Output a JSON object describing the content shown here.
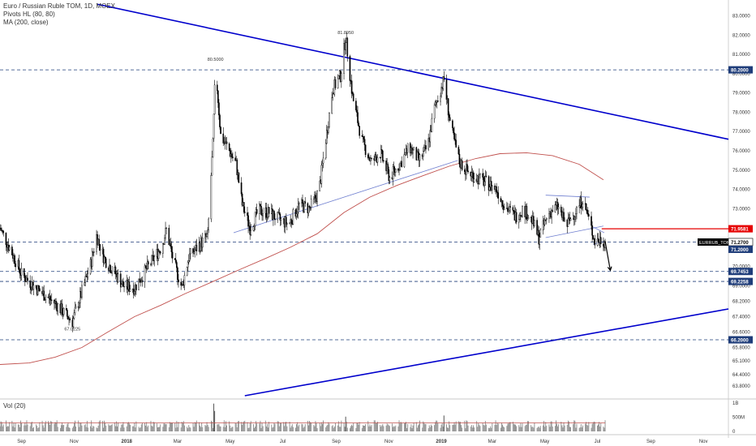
{
  "legend": {
    "title": "Euro / Russian Ruble TOM, 1D, MOEX",
    "indicator1": "Pivots HL (80, 80)",
    "indicator2": "MA (200, close)"
  },
  "volume_label": "Vol (20)",
  "colors": {
    "candle": "#000000",
    "ma": "#c0504d",
    "trendline": "#0000cc",
    "thin_trendline": "#6f7fd0",
    "hline": "#1f3d7a",
    "red_level": "#e60000",
    "volume": "#8a8a8a",
    "volume_ma": "#c0504d"
  },
  "chart_data": {
    "type": "candlestick",
    "title": "Euro / Russian Ruble TOM, 1D, MOEX",
    "xlabel": "",
    "ylabel": "",
    "x_ticks": [
      "Sep",
      "Nov",
      "2018",
      "Mar",
      "May",
      "Jul",
      "Sep",
      "Nov",
      "2019",
      "Mar",
      "May",
      "Jul",
      "Sep",
      "Nov"
    ],
    "y_ticks": [
      "83.0000",
      "82.0000",
      "81.0000",
      "80.0000",
      "79.0000",
      "78.0000",
      "77.0000",
      "76.0000",
      "75.0000",
      "74.0000",
      "73.0000",
      "72.0000",
      "71.0000",
      "70.0000",
      "69.0000",
      "68.2000",
      "67.4000",
      "66.6000",
      "65.8000",
      "65.1000",
      "64.4000",
      "63.8000"
    ],
    "ylim": [
      63.3,
      83.4
    ],
    "x_range": [
      "2017-08-07",
      "2019-11-30"
    ],
    "series_price": [
      [
        "2017-08-07",
        72.0
      ],
      [
        "2017-08-20",
        70.8
      ],
      [
        "2017-09-01",
        69.6
      ],
      [
        "2017-09-15",
        69.0
      ],
      [
        "2017-09-28",
        68.5
      ],
      [
        "2017-10-10",
        68.1
      ],
      [
        "2017-10-20",
        67.6
      ],
      [
        "2017-10-30",
        67.15
      ],
      [
        "2017-11-10",
        68.7
      ],
      [
        "2017-11-20",
        70.1
      ],
      [
        "2017-11-27",
        71.6
      ],
      [
        "2017-12-06",
        70.4
      ],
      [
        "2017-12-18",
        69.7
      ],
      [
        "2017-12-28",
        69.0
      ],
      [
        "2018-01-10",
        68.9
      ],
      [
        "2018-01-20",
        69.6
      ],
      [
        "2018-02-01",
        70.4
      ],
      [
        "2018-02-10",
        71.0
      ],
      [
        "2018-02-16",
        71.9
      ],
      [
        "2018-02-24",
        70.3
      ],
      [
        "2018-03-06",
        68.9
      ],
      [
        "2018-03-14",
        70.5
      ],
      [
        "2018-03-26",
        71.1
      ],
      [
        "2018-04-05",
        71.6
      ],
      [
        "2018-04-11",
        76.3
      ],
      [
        "2018-04-14",
        80.5
      ],
      [
        "2018-04-20",
        76.8
      ],
      [
        "2018-04-30",
        76.0
      ],
      [
        "2018-05-08",
        75.3
      ],
      [
        "2018-05-15",
        73.2
      ],
      [
        "2018-05-24",
        72.0
      ],
      [
        "2018-06-03",
        72.9
      ],
      [
        "2018-06-15",
        72.8
      ],
      [
        "2018-06-28",
        72.4
      ],
      [
        "2018-07-08",
        72.2
      ],
      [
        "2018-07-20",
        73.2
      ],
      [
        "2018-08-01",
        73.0
      ],
      [
        "2018-08-12",
        73.9
      ],
      [
        "2018-08-20",
        76.6
      ],
      [
        "2018-08-28",
        79.2
      ],
      [
        "2018-09-06",
        79.9
      ],
      [
        "2018-09-12",
        81.9
      ],
      [
        "2018-09-20",
        78.8
      ],
      [
        "2018-10-01",
        76.5
      ],
      [
        "2018-10-12",
        75.4
      ],
      [
        "2018-10-22",
        75.9
      ],
      [
        "2018-11-02",
        74.6
      ],
      [
        "2018-11-15",
        75.4
      ],
      [
        "2018-11-25",
        76.2
      ],
      [
        "2018-12-06",
        75.5
      ],
      [
        "2018-12-16",
        76.2
      ],
      [
        "2018-12-24",
        78.2
      ],
      [
        "2019-01-04",
        79.7
      ],
      [
        "2019-01-12",
        77.2
      ],
      [
        "2019-01-22",
        75.4
      ],
      [
        "2019-02-01",
        74.9
      ],
      [
        "2019-02-12",
        74.6
      ],
      [
        "2019-02-24",
        74.3
      ],
      [
        "2019-03-06",
        74.0
      ],
      [
        "2019-03-16",
        73.1
      ],
      [
        "2019-03-28",
        72.6
      ],
      [
        "2019-04-06",
        73.0
      ],
      [
        "2019-04-16",
        72.4
      ],
      [
        "2019-04-24",
        71.5
      ],
      [
        "2019-05-06",
        72.8
      ],
      [
        "2019-05-16",
        73.1
      ],
      [
        "2019-05-26",
        72.1
      ],
      [
        "2019-06-06",
        72.9
      ],
      [
        "2019-06-14",
        73.5
      ],
      [
        "2019-06-22",
        72.3
      ],
      [
        "2019-06-28",
        71.3
      ],
      [
        "2019-07-04",
        71.4
      ],
      [
        "2019-07-10",
        71.3
      ]
    ],
    "ma_200": [
      [
        "2017-08-07",
        64.92
      ],
      [
        "2017-09-10",
        65.0
      ],
      [
        "2017-10-10",
        65.3
      ],
      [
        "2017-11-10",
        65.8
      ],
      [
        "2017-12-10",
        66.6
      ],
      [
        "2018-01-10",
        67.4
      ],
      [
        "2018-02-10",
        68.0
      ],
      [
        "2018-03-10",
        68.6
      ],
      [
        "2018-04-10",
        69.2
      ],
      [
        "2018-05-10",
        69.8
      ],
      [
        "2018-06-10",
        70.4
      ],
      [
        "2018-07-10",
        71.0
      ],
      [
        "2018-08-10",
        71.7
      ],
      [
        "2018-09-10",
        72.8
      ],
      [
        "2018-10-10",
        73.6
      ],
      [
        "2018-11-10",
        74.2
      ],
      [
        "2018-12-10",
        74.7
      ],
      [
        "2019-01-10",
        75.2
      ],
      [
        "2019-02-10",
        75.6
      ],
      [
        "2019-03-10",
        75.85
      ],
      [
        "2019-04-10",
        75.9
      ],
      [
        "2019-05-10",
        75.75
      ],
      [
        "2019-06-10",
        75.3
      ],
      [
        "2019-07-08",
        74.5
      ]
    ],
    "pivot_labels": [
      {
        "date": "2017-10-30",
        "price": 67.0225,
        "text": "67.0225",
        "position": "below"
      },
      {
        "date": "2018-04-14",
        "price": 80.5,
        "text": "80.5000",
        "position": "above"
      },
      {
        "date": "2018-09-12",
        "price": 81.895,
        "text": "81.8950",
        "position": "above"
      }
    ],
    "horizontal_levels": [
      {
        "price": 80.2,
        "label": "80.2000",
        "style": "dashed",
        "color": "#1f3d7a"
      },
      {
        "price": 71.27,
        "label": "71.2700",
        "style": "dashed",
        "color": "#1f3d7a"
      },
      {
        "price": 69.7453,
        "label": "69.7453",
        "style": "dashed",
        "color": "#1f3d7a"
      },
      {
        "price": 69.2258,
        "label": "69.2258",
        "style": "dashed",
        "color": "#1f3d7a"
      },
      {
        "price": 66.2,
        "label": "66.2000",
        "style": "dashed",
        "color": "#1f3d7a"
      }
    ],
    "red_level": {
      "price": 71.9581,
      "label": "71.9581",
      "start_date": "2019-07-06"
    },
    "price_tags": [
      {
        "price": 71.27,
        "text": "EURRUB_TOM",
        "value": "71.2700"
      },
      {
        "price": 71.2,
        "value": "71.2000"
      }
    ],
    "trendlines": [
      {
        "from": [
          "2017-11-28",
          83.6
        ],
        "to": [
          "2019-11-30",
          76.6
        ],
        "color": "#0000cc",
        "width": 1.6
      },
      {
        "from": [
          "2018-05-18",
          63.3
        ],
        "to": [
          "2019-11-30",
          67.8
        ],
        "color": "#0000cc",
        "width": 1.6
      },
      {
        "from": [
          "2018-05-05",
          71.75
        ],
        "to": [
          "2019-01-20",
          75.5
        ],
        "color": "#6f7fd0",
        "width": 0.8
      },
      {
        "from": [
          "2019-05-02",
          73.7
        ],
        "to": [
          "2019-06-22",
          73.6
        ],
        "color": "#6f7fd0",
        "width": 0.8
      },
      {
        "from": [
          "2019-05-02",
          71.5
        ],
        "to": [
          "2019-07-08",
          72.1
        ],
        "color": "#6f7fd0",
        "width": 0.8
      },
      {
        "from": [
          "2019-06-26",
          72.05
        ],
        "to": [
          "2019-07-09",
          71.75
        ],
        "color": "#6f7fd0",
        "width": 0.8
      },
      {
        "from": [
          "2019-06-26",
          71.15
        ],
        "to": [
          "2019-07-09",
          71.3
        ],
        "color": "#6f7fd0",
        "width": 0.8
      }
    ],
    "arrow": {
      "from": [
        "2019-07-10",
        71.3
      ],
      "to": [
        "2019-07-16",
        69.8
      ]
    },
    "volume": {
      "label": "Vol (20)",
      "y_ticks": [
        "1B",
        "500M",
        "0"
      ],
      "ylim": [
        0,
        1000
      ],
      "typical": 280,
      "spikes": [
        [
          "2018-04-12",
          980
        ],
        [
          "2018-04-13",
          720
        ],
        [
          "2018-09-12",
          520
        ],
        [
          "2019-01-04",
          560
        ]
      ],
      "ma_level": 300
    }
  }
}
